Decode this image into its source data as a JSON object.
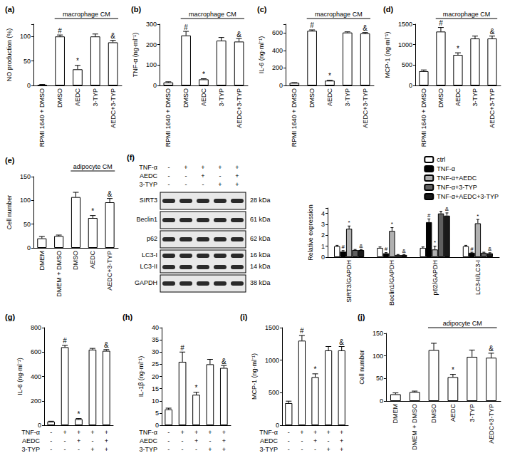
{
  "chart_data": [
    {
      "type": "bar",
      "title": "(a)",
      "ylabel": "NO production (%)",
      "categories": [
        "RPMI 1640 + DMSO",
        "DMSO",
        "AEDC",
        "3-TYP",
        "AEDC+3-TYP"
      ],
      "values": [
        1,
        100,
        33,
        100,
        88
      ],
      "errors": [
        1,
        3,
        8,
        5,
        4
      ],
      "marks": [
        null,
        "#",
        "*",
        null,
        "&"
      ],
      "color": "#ffffff",
      "ylim": [
        0,
        125
      ],
      "yticks": [
        0,
        50,
        100
      ],
      "grid": false,
      "annotation": {
        "text": "macrophage CM",
        "span": [
          "DMSO",
          "AEDC+3-TYP"
        ]
      }
    },
    {
      "type": "bar",
      "title": "(b)",
      "ylabel": "TNF-α (ng·ml⁻¹)",
      "categories": [
        "RPMI 1640 + DMSO",
        "DMSO",
        "AEDC",
        "3-TYP",
        "AEDC+3-TYP"
      ],
      "values": [
        15,
        245,
        30,
        220,
        215
      ],
      "errors": [
        3,
        20,
        3,
        15,
        15
      ],
      "marks": [
        null,
        "#",
        "*",
        null,
        "&"
      ],
      "color": "#ffffff",
      "ylim": [
        0,
        300
      ],
      "yticks": [
        0,
        100,
        200,
        300
      ],
      "grid": false,
      "annotation": {
        "text": "macrophage CM",
        "span": [
          "DMSO",
          "AEDC+3-TYP"
        ]
      }
    },
    {
      "type": "bar",
      "title": "(c)",
      "ylabel": "IL-6 (ng·ml⁻¹)",
      "categories": [
        "RPMI 1640 + DMSO",
        "DMSO",
        "AEDC",
        "3-TYP",
        "AEDC+3-TYP"
      ],
      "values": [
        30,
        625,
        55,
        605,
        595
      ],
      "errors": [
        3,
        10,
        5,
        8,
        10
      ],
      "marks": [
        null,
        "#",
        "*",
        null,
        "&"
      ],
      "color": "#ffffff",
      "ylim": [
        0,
        700
      ],
      "yticks": [
        0,
        200,
        400,
        600
      ],
      "grid": false,
      "annotation": {
        "text": "macrophage CM",
        "span": [
          "DMSO",
          "AEDC+3-TYP"
        ]
      }
    },
    {
      "type": "bar",
      "title": "(d)",
      "ylabel": "MCP-1 (ng·ml⁻¹)",
      "categories": [
        "RPMI 1640 + DMSO",
        "DMSO",
        "AEDC",
        "3-TYP",
        "AEDC+3-TYP"
      ],
      "values": [
        350,
        1320,
        750,
        1150,
        1150
      ],
      "errors": [
        30,
        100,
        50,
        60,
        60
      ],
      "marks": [
        null,
        "#",
        "*",
        null,
        "&"
      ],
      "color": "#ffffff",
      "ylim": [
        0,
        1500
      ],
      "yticks": [
        0,
        500,
        1000,
        1500
      ],
      "grid": false,
      "annotation": {
        "text": "macrophage CM",
        "span": [
          "DMSO",
          "AEDC+3-TYP"
        ]
      }
    },
    {
      "type": "bar",
      "title": "(e)",
      "ylabel": "Cell number",
      "categories": [
        "DMEM",
        "DMEM + DMSO",
        "DMSO",
        "AEDC",
        "AEDC+3-TYP"
      ],
      "values": [
        20,
        25,
        107,
        63,
        96
      ],
      "errors": [
        4,
        2,
        10,
        5,
        8
      ],
      "marks": [
        null,
        null,
        null,
        "*",
        "&"
      ],
      "color": "#ffffff",
      "ylim": [
        0,
        150
      ],
      "yticks": [
        0,
        50,
        100,
        150
      ],
      "grid": false,
      "annotation": {
        "text": "adipocyte CM",
        "span": [
          "DMSO",
          "AEDC+3-TYP"
        ]
      }
    },
    {
      "type": "blot",
      "title": "(f)",
      "conditions": [
        {
          "label": "TNF-α",
          "signs": [
            "-",
            "+",
            "+",
            "+",
            "+"
          ]
        },
        {
          "label": "AEDC",
          "signs": [
            "-",
            "-",
            "+",
            "-",
            "+"
          ]
        },
        {
          "label": "3-TYP",
          "signs": [
            "-",
            "-",
            "-",
            "+",
            "+"
          ]
        }
      ],
      "bands": [
        {
          "labels": [
            "SIRT3"
          ],
          "kda": [
            "28 kDa"
          ]
        },
        {
          "labels": [
            "Beclin1"
          ],
          "kda": [
            "61 kDa"
          ]
        },
        {
          "labels": [
            "p62"
          ],
          "kda": [
            "62 kDa"
          ]
        },
        {
          "labels": [
            "LC3-I",
            "LC3-II"
          ],
          "kda": [
            "16 kDa",
            "14 kDa"
          ]
        },
        {
          "labels": [
            "GAPDH"
          ],
          "kda": [
            "38 kDa"
          ]
        }
      ]
    },
    {
      "type": "bar",
      "ylabel": "Relative expression",
      "categories": [
        "SIRT3/GAPDH",
        "Beclin1/GAPDH",
        "p62/GAPDH",
        "LC3-II/LC3-I"
      ],
      "series": [
        {
          "name": "ctrl",
          "color": "#ffffff",
          "values": [
            1.0,
            0.85,
            0.85,
            1.0
          ],
          "errors": [
            0.08,
            0.08,
            0.08,
            0.08
          ],
          "marks": [
            null,
            null,
            null,
            null
          ]
        },
        {
          "name": "TNF-α",
          "color": "#000000",
          "values": [
            0.5,
            0.35,
            3.2,
            0.4
          ],
          "errors": [
            0.1,
            0.06,
            0.3,
            0.05
          ],
          "marks": [
            "#",
            "#",
            "#",
            "#"
          ]
        },
        {
          "name": "TNF-α+AEDC",
          "color": "#b0b0b0",
          "values": [
            2.6,
            2.4,
            0.7,
            3.1
          ],
          "errors": [
            0.25,
            0.3,
            0.3,
            0.35
          ],
          "marks": [
            "*",
            "*",
            "*",
            "*"
          ]
        },
        {
          "name": "TNF-α+3-TYP",
          "color": "#606060",
          "values": [
            0.65,
            0.2,
            4.0,
            0.4
          ],
          "errors": [
            0.05,
            0.04,
            0.2,
            0.05
          ],
          "marks": [
            null,
            null,
            null,
            null
          ]
        },
        {
          "name": "TNF-α+AEDC+3-TYP",
          "color": "#1a1a1a",
          "values": [
            0.65,
            0.2,
            3.8,
            0.35
          ],
          "errors": [
            0.05,
            0.04,
            0.25,
            0.05
          ],
          "marks": [
            "&",
            "&",
            "&",
            "&"
          ]
        }
      ],
      "ylim": [
        0,
        4.5
      ],
      "yticks": [
        0,
        1,
        2,
        3,
        4
      ],
      "grid": false,
      "legend": "top-right"
    },
    {
      "type": "bar",
      "title": "(g)",
      "ylabel": "IL-6 (ng·ml⁻¹)",
      "categories": [
        null,
        null,
        null,
        null,
        null
      ],
      "conditions": [
        {
          "label": "TNF-α",
          "signs": [
            "-",
            "+",
            "+",
            "+",
            "+"
          ]
        },
        {
          "label": "AEDC",
          "signs": [
            "-",
            "-",
            "+",
            "-",
            "+"
          ]
        },
        {
          "label": "3-TYP",
          "signs": [
            "-",
            "-",
            "-",
            "+",
            "+"
          ]
        }
      ],
      "values": [
        30,
        640,
        50,
        620,
        610
      ],
      "errors": [
        3,
        15,
        5,
        10,
        10
      ],
      "marks": [
        null,
        "#",
        "*",
        null,
        "&"
      ],
      "color": "#ffffff",
      "ylim": [
        0,
        800
      ],
      "yticks": [
        0,
        200,
        400,
        600,
        800
      ],
      "grid": false
    },
    {
      "type": "bar",
      "title": "(h)",
      "ylabel": "IL-1β (ng·ml⁻¹)",
      "categories": [
        null,
        null,
        null,
        null,
        null
      ],
      "conditions": [
        {
          "label": "TNF-α",
          "signs": [
            "-",
            "+",
            "+",
            "+",
            "+"
          ]
        },
        {
          "label": "AEDC",
          "signs": [
            "-",
            "-",
            "+",
            "-",
            "+"
          ]
        },
        {
          "label": "3-TYP",
          "signs": [
            "-",
            "-",
            "-",
            "+",
            "+"
          ]
        }
      ],
      "values": [
        6.5,
        26,
        12.5,
        25,
        23.5
      ],
      "errors": [
        0.5,
        4,
        1,
        2,
        1
      ],
      "marks": [
        null,
        "#",
        "*",
        null,
        "&"
      ],
      "color": "#ffffff",
      "ylim": [
        0,
        40
      ],
      "yticks": [
        0,
        5,
        10,
        15,
        20,
        25,
        30,
        35,
        40
      ],
      "grid": false
    },
    {
      "type": "bar",
      "title": "(i)",
      "ylabel": "MCP-1 (ng·ml⁻¹)",
      "categories": [
        null,
        null,
        null,
        null,
        null
      ],
      "conditions": [
        {
          "label": "TNF-α",
          "signs": [
            "-",
            "+",
            "+",
            "+",
            "+"
          ]
        },
        {
          "label": "AEDC",
          "signs": [
            "-",
            "-",
            "+",
            "-",
            "+"
          ]
        },
        {
          "label": "3-TYP",
          "signs": [
            "-",
            "-",
            "-",
            "+",
            "+"
          ]
        }
      ],
      "values": [
        340,
        1300,
        740,
        1150,
        1150
      ],
      "errors": [
        30,
        80,
        50,
        60,
        60
      ],
      "marks": [
        null,
        "#",
        "*",
        null,
        "&"
      ],
      "color": "#ffffff",
      "ylim": [
        0,
        1500
      ],
      "yticks": [
        0,
        500,
        1000,
        1500
      ],
      "grid": false
    },
    {
      "type": "bar",
      "title": "(j)",
      "ylabel": "Cell number",
      "categories": [
        "DMEM",
        "DMEM + DMSO",
        "DMSO",
        "AEDC",
        "3-TYP",
        "AEDC+3-TYP"
      ],
      "values": [
        15,
        20,
        113,
        53,
        98,
        96
      ],
      "errors": [
        3,
        2,
        15,
        6,
        15,
        10
      ],
      "marks": [
        null,
        null,
        null,
        "*",
        null,
        "&"
      ],
      "color": "#ffffff",
      "ylim": [
        0,
        150
      ],
      "yticks": [
        0,
        50,
        100,
        150
      ],
      "grid": false,
      "annotation": {
        "text": "adipocyte CM",
        "span": [
          "DMSO",
          "AEDC+3-TYP"
        ]
      }
    }
  ]
}
